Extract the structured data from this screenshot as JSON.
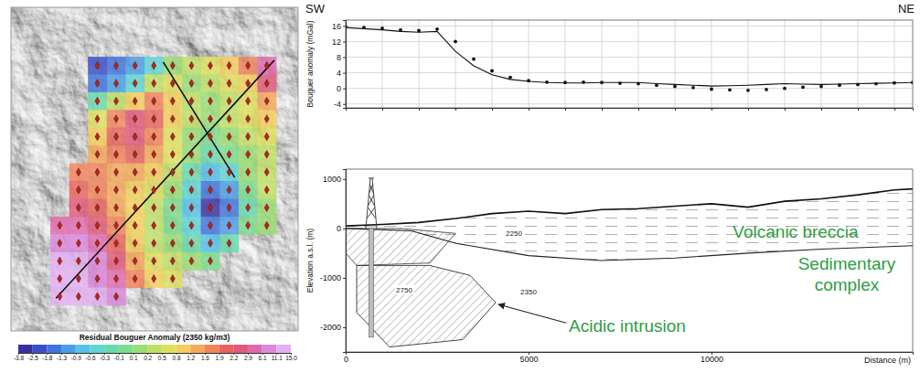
{
  "chart_data": [
    {
      "type": "heatmap",
      "colorbar": {
        "title": "Residual Bouguer Anomaly (2350 kg/m3)",
        "ticks": [
          -3.8,
          -2.5,
          -1.8,
          -1.3,
          -0.9,
          -0.6,
          -0.3,
          -0.1,
          0.1,
          0.2,
          0.5,
          0.8,
          1.2,
          1.6,
          1.9,
          2.2,
          2.9,
          6.1,
          11.1,
          {
            "value": 15,
            "label": "15.0"
          }
        ],
        "colors": [
          "#3b2f9e",
          "#3a4fc8",
          "#3f74dc",
          "#4a9ee6",
          "#56c2ea",
          "#5fd6d4",
          "#6ad9ad",
          "#7ddc8c",
          "#9ade74",
          "#bfe066",
          "#dfe05e",
          "#f3cf5c",
          "#f5a95a",
          "#f0845a",
          "#e8645e",
          "#e05a7c",
          "#e06aae",
          "#dc88dc",
          "#e4b0f2"
        ]
      },
      "cells": [
        [
          null,
          null,
          -2.5,
          -1.8,
          -1.3,
          -0.6,
          0.1,
          0.2,
          0.5,
          0.8,
          1.6,
          2.9
        ],
        [
          null,
          null,
          -1.8,
          -1.3,
          -0.6,
          0.2,
          0.5,
          0.1,
          0.2,
          0.5,
          0.8,
          2.2
        ],
        [
          null,
          null,
          -0.3,
          0.2,
          0.8,
          1.6,
          0.8,
          0.2,
          0.1,
          0.2,
          0.5,
          1.2
        ],
        [
          null,
          null,
          0.5,
          1.6,
          2.2,
          1.9,
          0.8,
          0.2,
          0.1,
          0.2,
          0.5,
          0.8
        ],
        [
          null,
          null,
          0.8,
          1.9,
          2.2,
          1.6,
          0.5,
          0.1,
          -0.1,
          0.1,
          0.2,
          0.5
        ],
        [
          null,
          null,
          1.2,
          1.6,
          1.9,
          1.2,
          0.5,
          0.1,
          -0.3,
          -0.1,
          0.1,
          0.2
        ],
        [
          null,
          1.6,
          1.6,
          1.2,
          1.2,
          0.8,
          0.2,
          -0.3,
          -0.9,
          -0.6,
          0.1,
          0.2
        ],
        [
          null,
          1.9,
          1.6,
          1.2,
          0.8,
          0.5,
          0.1,
          -0.6,
          -1.8,
          -1.3,
          -0.1,
          0.2
        ],
        [
          null,
          2.2,
          1.9,
          1.2,
          0.8,
          0.2,
          -0.1,
          -0.9,
          -3.8,
          -1.8,
          -0.3,
          0.1
        ],
        [
          2.9,
          2.9,
          2.2,
          1.6,
          0.8,
          0.2,
          -0.1,
          -0.6,
          -1.8,
          -1.3,
          -0.1,
          0.1
        ],
        [
          6.1,
          6.1,
          2.9,
          1.9,
          0.8,
          0.2,
          0.1,
          -0.3,
          -0.9,
          -0.3,
          null,
          null
        ],
        [
          11.1,
          11.1,
          6.1,
          2.2,
          1.2,
          0.5,
          0.2,
          0.1,
          -0.1,
          null,
          null,
          null
        ],
        [
          15,
          11.1,
          6.1,
          2.9,
          1.6,
          0.8,
          0.5,
          null,
          null,
          null,
          null,
          null
        ],
        [
          15,
          15,
          11.1,
          6.1,
          null,
          null,
          null,
          null,
          null,
          null,
          null,
          null
        ]
      ]
    },
    {
      "type": "line",
      "direction_labels": [
        "SW",
        "NE"
      ],
      "ylabel": "Bouguer anomaly (mGal)",
      "x": [
        0,
        500,
        1000,
        1500,
        2000,
        2500,
        3000,
        3500,
        4000,
        4500,
        5000,
        5500,
        6000,
        6500,
        7000,
        7500,
        8000,
        8500,
        9000,
        9500,
        10000,
        10500,
        11000,
        11500,
        12000,
        12500,
        13000,
        13500,
        14000,
        14500,
        15000,
        15500
      ],
      "series": [
        {
          "marker": "dot",
          "values": [
            15.8,
            15.6,
            15.4,
            15.0,
            14.8,
            15.2,
            12.0,
            7.5,
            4.5,
            2.8,
            2.0,
            1.6,
            1.5,
            1.6,
            1.5,
            1.3,
            1.2,
            0.8,
            0.5,
            0.2,
            -0.2,
            -0.4,
            -0.5,
            -0.3,
            0,
            0.3,
            0.5,
            0.8,
            1.0,
            1.2,
            1.4,
            1.5
          ]
        },
        {
          "line_style": "solid",
          "values": [
            15.6,
            15.3,
            15.0,
            14.6,
            14.4,
            14.6,
            9.5,
            5.8,
            3.5,
            2.3,
            1.8,
            1.5,
            1.4,
            1.4,
            1.5,
            1.5,
            1.5,
            1.2,
            1.0,
            0.8,
            0.6,
            0.7,
            0.8,
            1.0,
            1.2,
            1.1,
            1.0,
            1.1,
            1.2,
            1.3,
            1.4,
            1.5
          ]
        }
      ],
      "xlim": [
        0,
        15500
      ],
      "ylim": [
        -5,
        17.5
      ],
      "xticks": [
        0,
        1000,
        2000,
        3000,
        4000,
        5000,
        6000,
        7000,
        8000,
        9000,
        10000,
        11000,
        12000,
        13000,
        14000,
        15000
      ],
      "yticks": [
        -4,
        0,
        4,
        8,
        12,
        16
      ],
      "grid": true,
      "tick_labels": "y"
    },
    {
      "type": "section",
      "ylabel": "Elevation a.s.l. (m)",
      "xlabel": "Distance (m)",
      "xlim": [
        0,
        15500
      ],
      "ylim": [
        -2500,
        1200
      ],
      "xticks": [
        0,
        5000,
        10000
      ],
      "yticks": [
        -2000,
        -1000,
        0,
        1000
      ],
      "grid": false,
      "color": "#2f9e44",
      "topography": {
        "x": [
          0,
          1000,
          2000,
          3000,
          4000,
          5000,
          6000,
          7000,
          8000,
          9000,
          10000,
          11000,
          12000,
          13000,
          14000,
          15000,
          15500
        ],
        "y": [
          50,
          80,
          120,
          200,
          300,
          350,
          300,
          380,
          400,
          450,
          500,
          430,
          550,
          600,
          680,
          780,
          800
        ]
      },
      "breccia_base": {
        "x": [
          0,
          1800,
          3000,
          5000,
          7000,
          9000,
          11000,
          13000,
          15500
        ],
        "y": [
          0,
          -50,
          -300,
          -550,
          -650,
          -600,
          -500,
          -420,
          -350
        ]
      },
      "fault_block": {
        "x": [
          0,
          1500,
          3000,
          2300,
          300,
          0
        ],
        "y": [
          0,
          0,
          -100,
          -700,
          -750,
          -500
        ]
      },
      "intrusion": {
        "x": [
          300,
          2300,
          3400,
          4100,
          3200,
          1200,
          300
        ],
        "y": [
          -750,
          -750,
          -950,
          -1500,
          -2250,
          -2400,
          -1700
        ]
      },
      "well": {
        "x": 700,
        "top": 0,
        "bottom": -2200
      },
      "densities": [
        {
          "value": 2250,
          "x": 4600,
          "y": -120
        },
        {
          "value": 2350,
          "x": 5000,
          "y": -1300
        },
        {
          "value": 2750,
          "x": 1600,
          "y": -1250
        }
      ],
      "annotations": [
        {
          "text": "Volcanic breccia",
          "x": 12300,
          "y": -100
        },
        {
          "text": "Sedimentary complex",
          "x": 13700,
          "y": -950
        },
        {
          "text": "Acidic intrusion",
          "x": 7700,
          "y": -2000
        }
      ]
    }
  ]
}
